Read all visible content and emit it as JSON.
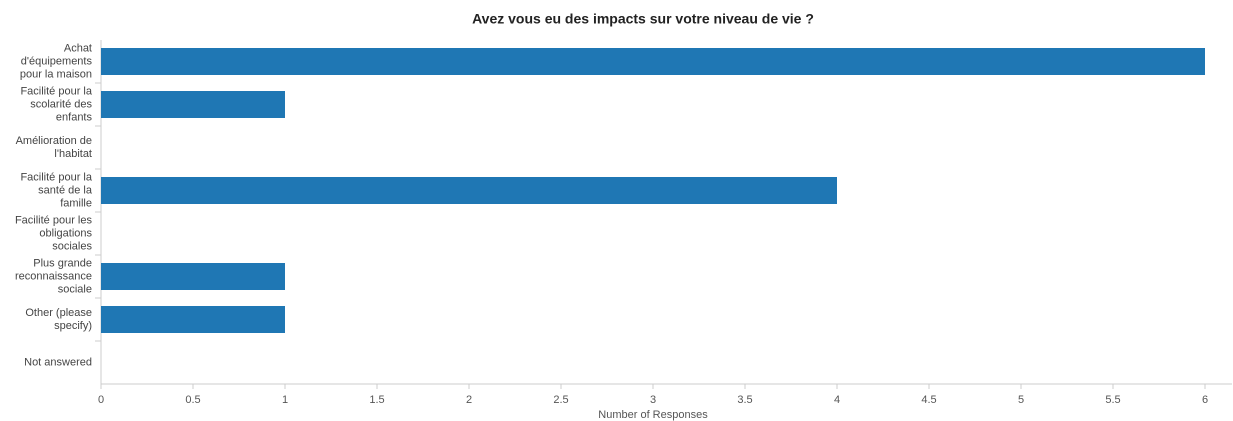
{
  "chart_data": {
    "type": "bar",
    "orientation": "horizontal",
    "title": "Avez vous eu des impacts sur votre niveau de vie ?",
    "xlabel": "Number of Responses",
    "categories": [
      "Achat d'équipements pour la maison",
      "Facilité pour la scolarité des enfants",
      "Amélioration de l'habitat",
      "Facilité pour la santé de la famille",
      "Facilité pour les obligations sociales",
      "Plus grande reconnaissance sociale",
      "Other (please specify)",
      "Not answered"
    ],
    "values": [
      6,
      1,
      0,
      4,
      0,
      1,
      1,
      0
    ],
    "color": "#1f77b4",
    "xlim": [
      0,
      6
    ],
    "xticks": [
      0,
      0.5,
      1,
      1.5,
      2,
      2.5,
      3,
      3.5,
      4,
      4.5,
      5,
      5.5,
      6
    ]
  }
}
